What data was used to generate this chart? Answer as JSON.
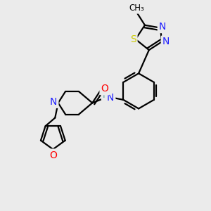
{
  "bg_color": "#ebebeb",
  "atom_colors": {
    "C": "#000000",
    "N": "#2020ff",
    "O": "#ff0000",
    "S": "#cccc00",
    "H": "#5f9ea0"
  },
  "bond_color": "#000000",
  "bond_width": 1.6,
  "fig_size": [
    3.0,
    3.0
  ],
  "dpi": 100
}
